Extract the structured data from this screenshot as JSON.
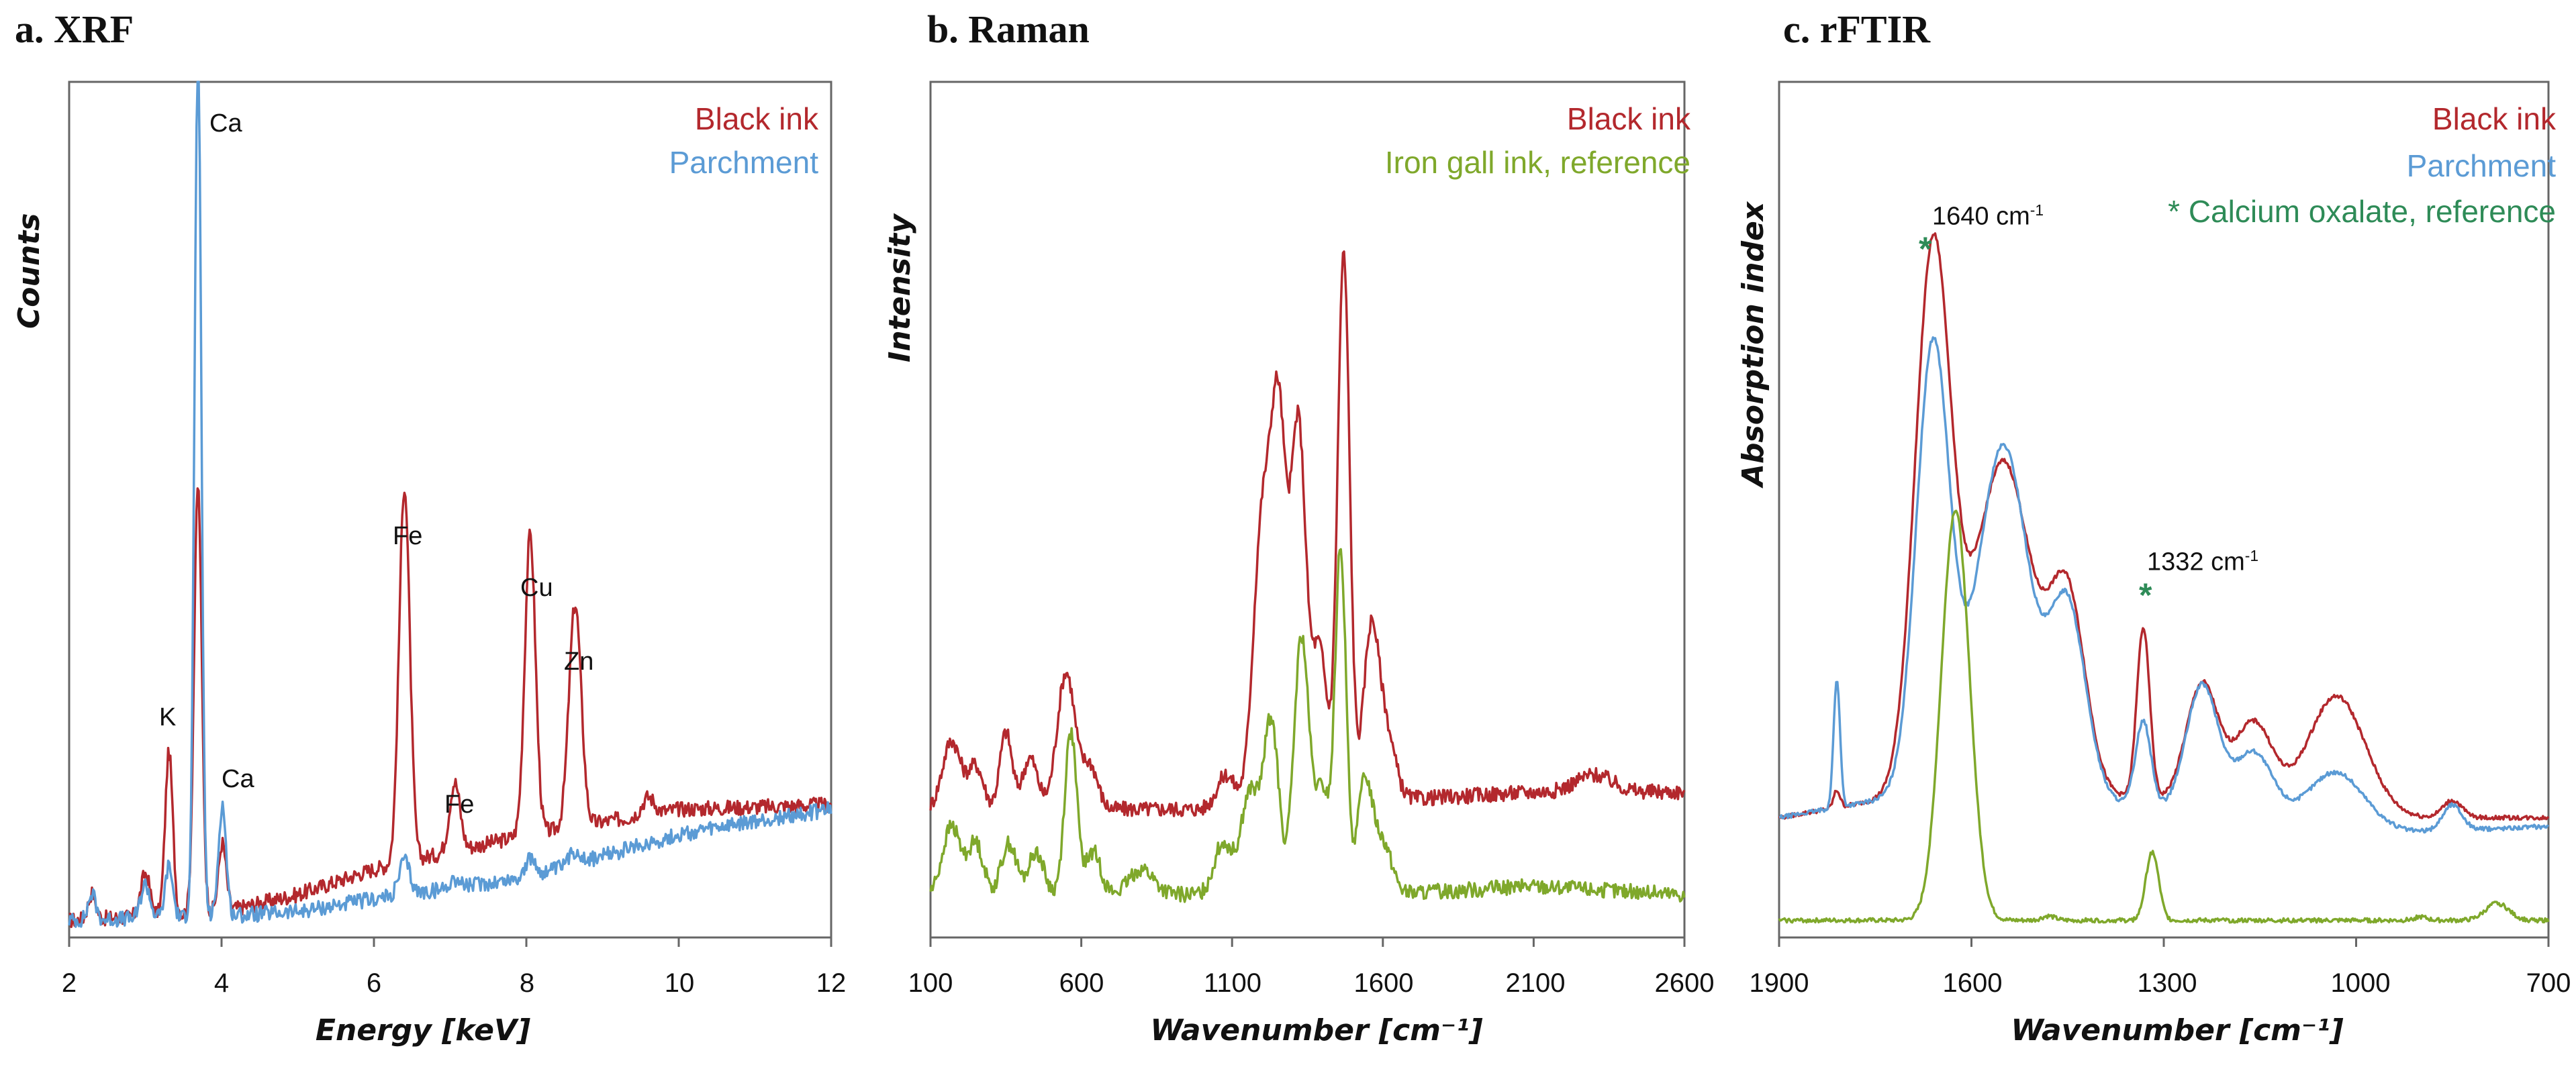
{
  "colors": {
    "black_ink": "#b3282d",
    "parchment": "#5b9bd5",
    "reference": "#7fa82b",
    "star": "#2e8b57",
    "frame": "#666666"
  },
  "chart_data": [
    {
      "type": "line",
      "title": "a. XRF",
      "xlabel": "Energy [keV]",
      "ylabel": "Counts",
      "xlim": [
        2,
        12
      ],
      "xticks": [
        "2",
        "4",
        "6",
        "8",
        "10",
        "12"
      ],
      "ylim": [
        0,
        100
      ],
      "series": [
        {
          "name": "Black ink",
          "color": "#b3282d",
          "baseline": [
            [
              2,
              2
            ],
            [
              4,
              3
            ],
            [
              5,
              5
            ],
            [
              6,
              8
            ],
            [
              8,
              12
            ],
            [
              10,
              15
            ],
            [
              12,
              15.5
            ]
          ],
          "peaks": [
            [
              2.3,
              3,
              0.05
            ],
            [
              3.0,
              5,
              0.06
            ],
            [
              3.31,
              19,
              0.05
            ],
            [
              3.69,
              50,
              0.05
            ],
            [
              4.01,
              8,
              0.05
            ],
            [
              6.4,
              44,
              0.07
            ],
            [
              7.06,
              8,
              0.07
            ],
            [
              8.05,
              35,
              0.07
            ],
            [
              8.64,
              26,
              0.08
            ],
            [
              9.6,
              2,
              0.08
            ]
          ]
        },
        {
          "name": "Parchment",
          "color": "#5b9bd5",
          "baseline": [
            [
              2,
              2
            ],
            [
              4,
              2.5
            ],
            [
              5,
              3
            ],
            [
              6,
              4.5
            ],
            [
              8,
              7
            ],
            [
              10,
              12
            ],
            [
              12,
              15
            ]
          ],
          "peaks": [
            [
              2.3,
              3,
              0.05
            ],
            [
              3.0,
              4,
              0.06
            ],
            [
              3.31,
              6,
              0.05
            ],
            [
              3.69,
              101,
              0.045
            ],
            [
              4.01,
              13,
              0.05
            ],
            [
              6.4,
              4,
              0.07
            ],
            [
              7.06,
              1,
              0.07
            ],
            [
              8.05,
              2,
              0.07
            ],
            [
              8.64,
              1.5,
              0.08
            ]
          ]
        }
      ],
      "annotations": [
        {
          "label": "Ca",
          "x": 3.69,
          "y": 98
        },
        {
          "label": "K",
          "x": 3.31,
          "y": 25
        },
        {
          "label": "Ca",
          "x": 4.01,
          "y": 17
        },
        {
          "label": "Fe",
          "x": 6.4,
          "y": 47
        },
        {
          "label": "Fe",
          "x": 7.06,
          "y": 14
        },
        {
          "label": "Cu",
          "x": 8.05,
          "y": 39
        },
        {
          "label": "Zn",
          "x": 8.64,
          "y": 31
        }
      ]
    },
    {
      "type": "line",
      "title": "b. Raman",
      "xlabel": "Wavenumber [cm⁻¹]",
      "ylabel": "Intensity",
      "xlim": [
        100,
        2600
      ],
      "xticks": [
        "100",
        "600",
        "1100",
        "1600",
        "2100",
        "2600"
      ],
      "ylim": [
        0,
        100
      ],
      "series": [
        {
          "name": "Black ink",
          "color": "#b3282d",
          "baseline": [
            [
              100,
              15
            ],
            [
              600,
              15
            ],
            [
              1100,
              15
            ],
            [
              1600,
              16
            ],
            [
              2100,
              17
            ],
            [
              2600,
              17
            ]
          ],
          "peaks": [
            [
              170,
              8,
              30
            ],
            [
              250,
              5,
              25
            ],
            [
              350,
              9,
              20
            ],
            [
              430,
              6,
              25
            ],
            [
              550,
              16,
              30
            ],
            [
              630,
              5,
              25
            ],
            [
              1080,
              4,
              30
            ],
            [
              1200,
              33,
              30
            ],
            [
              1255,
              42,
              25
            ],
            [
              1320,
              44,
              25
            ],
            [
              1390,
              18,
              25
            ],
            [
              1470,
              64,
              20
            ],
            [
              1560,
              19,
              25
            ],
            [
              1610,
              8,
              30
            ],
            [
              2300,
              2,
              60
            ]
          ]
        },
        {
          "name": "Iron gall ink, reference",
          "color": "#7fa82b",
          "baseline": [
            [
              100,
              5
            ],
            [
              600,
              5
            ],
            [
              1100,
              5
            ],
            [
              1600,
              5
            ],
            [
              2100,
              6
            ],
            [
              2600,
              5
            ]
          ],
          "peaks": [
            [
              170,
              8,
              30
            ],
            [
              250,
              6,
              25
            ],
            [
              360,
              6,
              25
            ],
            [
              450,
              5,
              25
            ],
            [
              565,
              19,
              20
            ],
            [
              640,
              5,
              25
            ],
            [
              800,
              3,
              40
            ],
            [
              1070,
              6,
              30
            ],
            [
              1160,
              12,
              30
            ],
            [
              1230,
              20,
              25
            ],
            [
              1330,
              30,
              25
            ],
            [
              1400,
              12,
              25
            ],
            [
              1460,
              40,
              18
            ],
            [
              1540,
              13,
              25
            ],
            [
              1600,
              6,
              30
            ]
          ]
        }
      ]
    },
    {
      "type": "line",
      "title": "c. rFTIR",
      "xlabel": "Wavenumber [cm⁻¹]",
      "ylabel": "Absorption index",
      "xlim": [
        1900,
        700
      ],
      "xticks": [
        "1900",
        "1600",
        "1300",
        "1000",
        "700"
      ],
      "ylim": [
        0,
        100
      ],
      "series": [
        {
          "name": "Black ink",
          "color": "#b3282d",
          "baseline": [
            [
              1900,
              14
            ],
            [
              1600,
              18
            ],
            [
              1300,
              16
            ],
            [
              1000,
              14
            ],
            [
              700,
              14
            ]
          ],
          "peaks": [
            [
              1810,
              2,
              5
            ],
            [
              1660,
              63,
              28
            ],
            [
              1550,
              38,
              45
            ],
            [
              1450,
              22,
              28
            ],
            [
              1332,
              20,
              10
            ],
            [
              1240,
              14,
              25
            ],
            [
              1160,
              10,
              30
            ],
            [
              1030,
              14,
              45
            ],
            [
              850,
              2,
              15
            ]
          ]
        },
        {
          "name": "Parchment",
          "color": "#5b9bd5",
          "baseline": [
            [
              1900,
              14
            ],
            [
              1600,
              18
            ],
            [
              1300,
              15
            ],
            [
              1000,
              12
            ],
            [
              700,
              13
            ]
          ],
          "peaks": [
            [
              1810,
              15,
              5
            ],
            [
              1660,
              52,
              26
            ],
            [
              1550,
              40,
              40
            ],
            [
              1450,
              22,
              28
            ],
            [
              1332,
              10,
              12
            ],
            [
              1240,
              15,
              25
            ],
            [
              1160,
              8,
              30
            ],
            [
              1030,
              7,
              45
            ],
            [
              850,
              3,
              15
            ]
          ]
        },
        {
          "name": "* Calcium oxalate, reference",
          "color": "#7fa82b",
          "baseline": [
            [
              1900,
              2
            ],
            [
              1300,
              2
            ],
            [
              700,
              2
            ]
          ],
          "peaks": [
            [
              1625,
              48,
              22
            ],
            [
              1480,
              0.5,
              10
            ],
            [
              1318,
              8,
              10
            ],
            [
              900,
              0.4,
              10
            ],
            [
              780,
              2,
              18
            ]
          ]
        }
      ],
      "annotations": [
        {
          "label": "1640 cm",
          "sup": "-1",
          "x": 1640,
          "y": 83
        },
        {
          "label": "1332 cm",
          "sup": "-1",
          "x": 1332,
          "y": 43
        }
      ],
      "markers": [
        {
          "label": "*",
          "x": 1660,
          "y": 82
        },
        {
          "label": "*",
          "x": 1318,
          "y": 40
        }
      ]
    }
  ]
}
